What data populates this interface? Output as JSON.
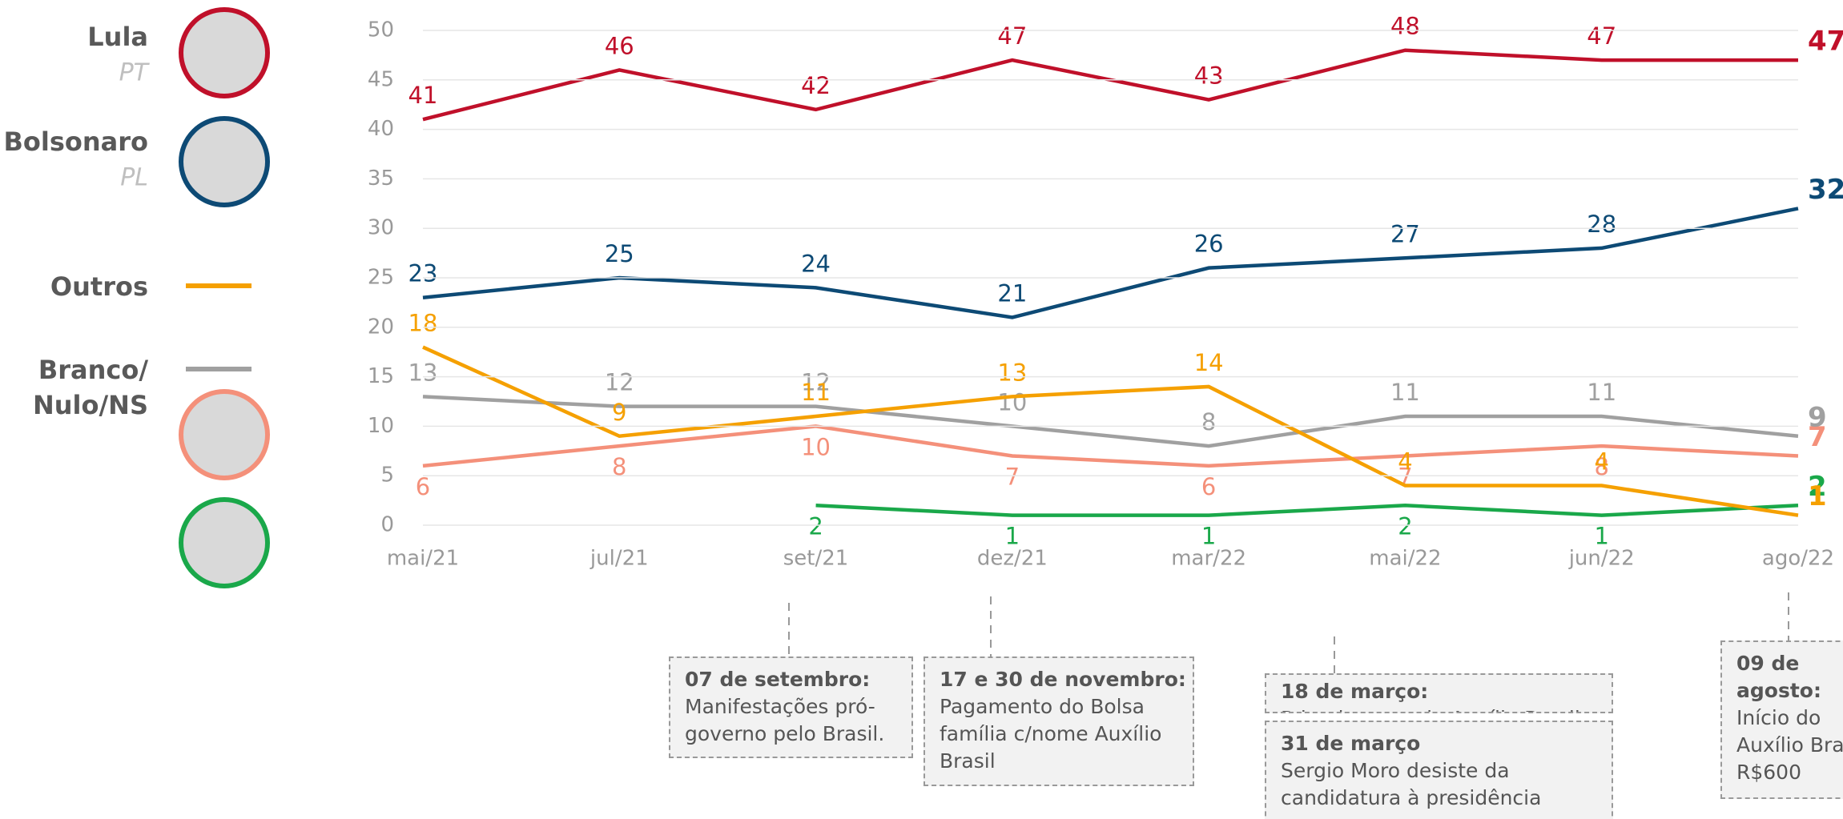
{
  "chart_data": {
    "type": "line",
    "categories": [
      "mai/21",
      "jul/21",
      "set/21",
      "dez/21",
      "mar/22",
      "mai/22",
      "jun/22",
      "ago/22"
    ],
    "series": [
      {
        "name": "Lula",
        "party": "PT",
        "color": "#c0102a",
        "values": [
          41,
          46,
          42,
          47,
          43,
          48,
          47,
          47
        ]
      },
      {
        "name": "Bolsonaro",
        "party": "PL",
        "color": "#0d4a75",
        "values": [
          23,
          25,
          24,
          21,
          26,
          27,
          28,
          32
        ]
      },
      {
        "name": "Outros",
        "color": "#f5a000",
        "values": [
          18,
          9,
          11,
          13,
          14,
          4,
          4,
          1
        ]
      },
      {
        "name": "Branco/ Nulo/NS",
        "color": "#a0a0a0",
        "values": [
          13,
          12,
          12,
          10,
          8,
          11,
          11,
          9
        ]
      },
      {
        "color": "#f4907a",
        "values": [
          6,
          8,
          10,
          7,
          6,
          7,
          8,
          7
        ]
      },
      {
        "color": "#1aa84a",
        "values": [
          null,
          null,
          2,
          1,
          1,
          2,
          1,
          2
        ]
      }
    ],
    "ylim": [
      0,
      50
    ],
    "yticks": [
      0,
      5,
      10,
      15,
      20,
      25,
      30,
      35,
      40,
      45,
      50
    ],
    "grid": true,
    "annotations": [
      {
        "title": "07 de setembro:",
        "lines": [
          "Manifestações pró-",
          "governo pelo Brasil."
        ]
      },
      {
        "title": "17 e 30 de novembro:",
        "lines": [
          "Pagamento do Bolsa",
          "família c/nome Auxílio",
          "Brasil"
        ]
      },
      {
        "title": "18 de março:",
        "lines": [
          "Primeira parcela Auxílio Brasil"
        ]
      },
      {
        "title": "31 de março",
        "lines": [
          "Sergio Moro desiste da",
          "candidatura à presidência"
        ]
      },
      {
        "title": "09 de agosto:",
        "lines": [
          "Início do",
          "Auxílio Bra",
          "R$600"
        ]
      }
    ]
  }
}
